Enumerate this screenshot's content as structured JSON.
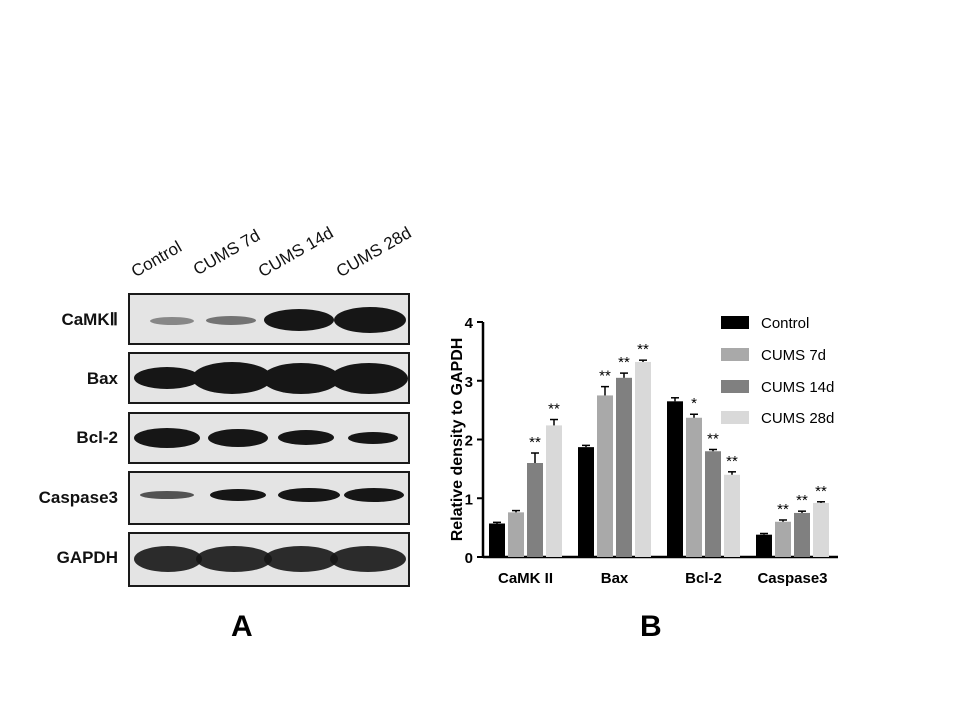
{
  "panel_a": {
    "letter": "A",
    "lanes": [
      "Control",
      "CUMS 7d",
      "CUMS 14d",
      "CUMS 28d"
    ],
    "proteins": [
      "CaMKⅡ",
      "Bax",
      "Bcl-2",
      "Caspase3",
      "GAPDH"
    ]
  },
  "panel_b": {
    "letter": "B"
  },
  "chart_data": {
    "type": "bar",
    "ylabel": "Relative density to GAPDH",
    "ylim": [
      0,
      4
    ],
    "yticks": [
      "0",
      "1",
      "2",
      "3",
      "4"
    ],
    "categories": [
      "CaMK II",
      "Bax",
      "Bcl-2",
      "Caspase3"
    ],
    "legend_position": "right",
    "series": [
      {
        "name": "Control",
        "color": "#000000",
        "values": [
          0.57,
          1.87,
          2.65,
          0.38
        ],
        "errors": [
          0.02,
          0.03,
          0.06,
          0.02
        ],
        "sig": [
          "",
          "",
          "",
          ""
        ]
      },
      {
        "name": "CUMS 7d",
        "color": "#a9a9a9",
        "values": [
          0.76,
          2.75,
          2.37,
          0.6
        ],
        "errors": [
          0.03,
          0.15,
          0.06,
          0.03
        ],
        "sig": [
          "",
          "**",
          "*",
          "**"
        ]
      },
      {
        "name": "CUMS 14d",
        "color": "#808080",
        "values": [
          1.6,
          3.05,
          1.8,
          0.75
        ],
        "errors": [
          0.17,
          0.08,
          0.03,
          0.03
        ],
        "sig": [
          "**",
          "**",
          "**",
          "**"
        ]
      },
      {
        "name": "CUMS 28d",
        "color": "#d9d9d9",
        "values": [
          2.24,
          3.32,
          1.4,
          0.92
        ],
        "errors": [
          0.1,
          0.03,
          0.05,
          0.02
        ],
        "sig": [
          "**",
          "**",
          "**",
          "**"
        ]
      }
    ]
  }
}
